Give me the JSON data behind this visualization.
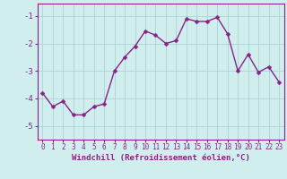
{
  "x": [
    0,
    1,
    2,
    3,
    4,
    5,
    6,
    7,
    8,
    9,
    10,
    11,
    12,
    13,
    14,
    15,
    16,
    17,
    18,
    19,
    20,
    21,
    22,
    23
  ],
  "y": [
    -3.8,
    -4.3,
    -4.1,
    -4.6,
    -4.6,
    -4.3,
    -4.2,
    -3.0,
    -2.5,
    -2.1,
    -1.55,
    -1.7,
    -2.0,
    -1.9,
    -1.1,
    -1.2,
    -1.2,
    -1.05,
    -1.65,
    -3.0,
    -2.4,
    -3.05,
    -2.85,
    -3.4
  ],
  "line_color": "#882288",
  "marker": "D",
  "marker_size": 2.5,
  "linewidth": 1.0,
  "bg_color": "#d0eeee",
  "grid_color": "#aacccc",
  "xlabel": "Windchill (Refroidissement éolien,°C)",
  "xlabel_fontsize": 6.5,
  "ylabel_ticks": [
    -5,
    -4,
    -3,
    -2,
    -1
  ],
  "xtick_labels": [
    "0",
    "1",
    "2",
    "3",
    "4",
    "5",
    "6",
    "7",
    "8",
    "9",
    "10",
    "11",
    "12",
    "13",
    "14",
    "15",
    "16",
    "17",
    "18",
    "19",
    "20",
    "21",
    "22",
    "23"
  ],
  "ylim": [
    -5.5,
    -0.55
  ],
  "xlim": [
    -0.5,
    23.5
  ],
  "tick_color": "#882288",
  "tick_fontsize": 6.5,
  "xtick_fontsize": 5.5
}
